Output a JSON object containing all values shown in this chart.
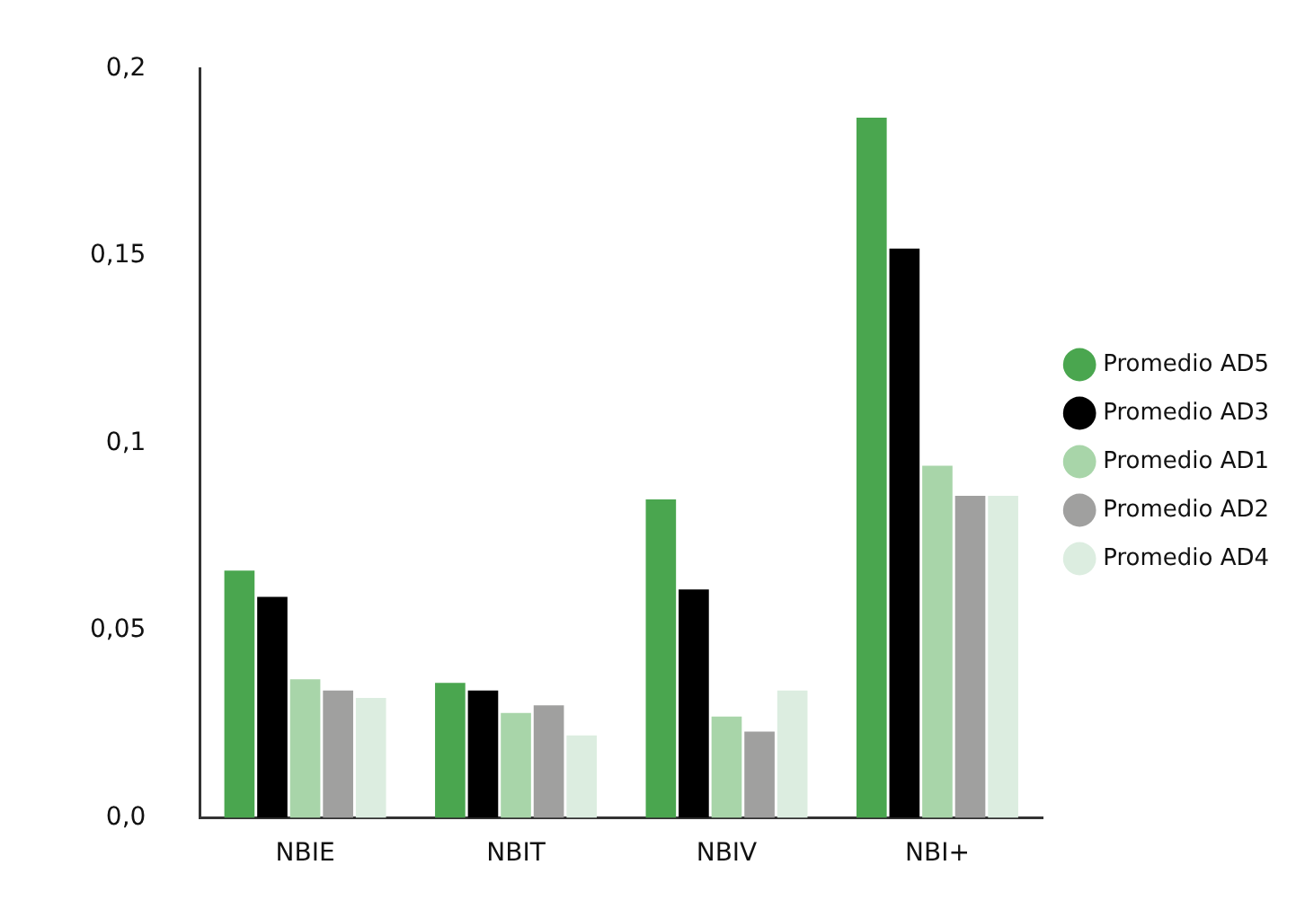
{
  "chart_data": {
    "type": "bar",
    "categories": [
      "NBIE",
      "NBIT",
      "NBIV",
      "NBI+"
    ],
    "series": [
      {
        "name": "Promedio AD5",
        "color": "#4aa64f",
        "values": [
          0.066,
          0.036,
          0.085,
          0.187
        ]
      },
      {
        "name": "Promedio AD3",
        "color": "#000000",
        "values": [
          0.059,
          0.034,
          0.061,
          0.152
        ]
      },
      {
        "name": "Promedio AD1",
        "color": "#a8d5a9",
        "values": [
          0.037,
          0.028,
          0.027,
          0.094
        ]
      },
      {
        "name": "Promedio AD2",
        "color": "#a0a09f",
        "values": [
          0.034,
          0.03,
          0.023,
          0.086
        ]
      },
      {
        "name": "Promedio AD4",
        "color": "#dcede0",
        "values": [
          0.032,
          0.022,
          0.034,
          0.086
        ]
      }
    ],
    "ylim": [
      0,
      0.2
    ],
    "yticks": [
      {
        "value": 0,
        "label": "0,0"
      },
      {
        "value": 0.05,
        "label": "0,05"
      },
      {
        "value": 0.1,
        "label": "0,1"
      },
      {
        "value": 0.15,
        "label": "0,15"
      },
      {
        "value": 0.2,
        "label": "0,2"
      }
    ],
    "grid": false,
    "legend": "right"
  }
}
